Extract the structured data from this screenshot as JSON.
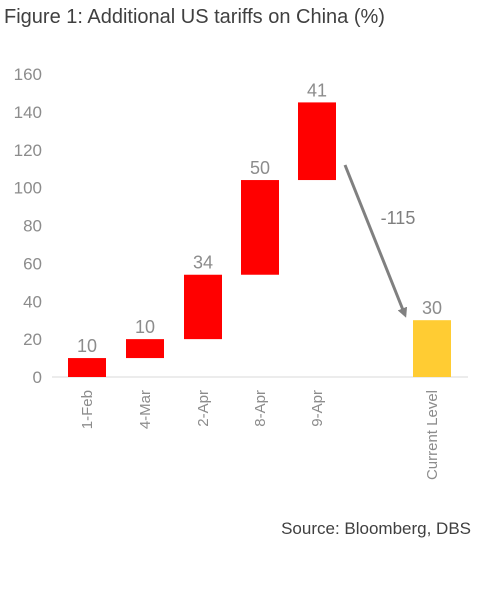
{
  "figure": {
    "title": "Figure 1: Additional US tariffs on China (%)",
    "source": "Source: Bloomberg, DBS"
  },
  "chart_data": {
    "type": "bar",
    "subtype": "waterfall",
    "title": "Figure 1: Additional US tariffs on China (%)",
    "xlabel": "",
    "ylabel": "",
    "ylim": [
      0,
      160
    ],
    "yticks": [
      0,
      20,
      40,
      60,
      80,
      100,
      120,
      140,
      160
    ],
    "categories": [
      "1-Feb",
      "4-Mar",
      "2-Apr",
      "8-Apr",
      "9-Apr",
      "Current Level"
    ],
    "bars": [
      {
        "category": "1-Feb",
        "start": 0,
        "end": 10,
        "label": "10"
      },
      {
        "category": "4-Mar",
        "start": 10,
        "end": 20,
        "label": "10"
      },
      {
        "category": "2-Apr",
        "start": 20,
        "end": 54,
        "label": "34"
      },
      {
        "category": "8-Apr",
        "start": 54,
        "end": 104,
        "label": "50"
      },
      {
        "category": "9-Apr",
        "start": 104,
        "end": 145,
        "label": "41"
      },
      {
        "category": "Current Level",
        "start": 0,
        "end": 30,
        "label": "30",
        "total": true
      }
    ],
    "annotation": {
      "text": "-115",
      "from": "9-Apr",
      "to": "Current Level"
    },
    "colors": {
      "increase": "#ff0000",
      "total": "#ffcc33",
      "arrow": "#808080",
      "text": "#8c8c8c"
    },
    "grid": false,
    "legend": "none"
  }
}
